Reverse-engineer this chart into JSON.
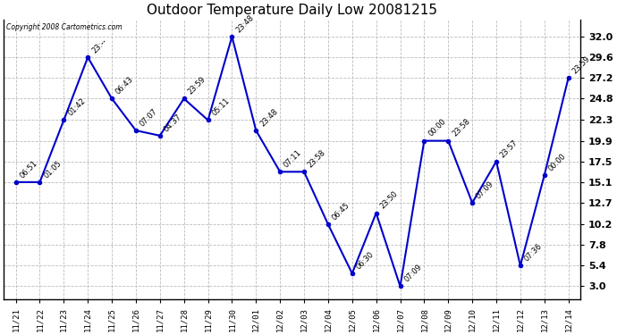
{
  "title": "Outdoor Temperature Daily Low 20081215",
  "copyright_text": "Copyright 2008 Cartometrics.com",
  "dates": [
    "11/21",
    "11/22",
    "11/23",
    "11/24",
    "11/25",
    "11/26",
    "11/27",
    "11/28",
    "11/29",
    "11/30",
    "12/01",
    "12/02",
    "12/03",
    "12/04",
    "12/05",
    "12/06",
    "12/07",
    "12/08",
    "12/09",
    "12/10",
    "12/11",
    "12/12",
    "12/13",
    "12/14"
  ],
  "values": [
    15.1,
    15.1,
    22.3,
    29.6,
    24.8,
    21.1,
    20.5,
    24.8,
    22.3,
    32.0,
    21.1,
    16.3,
    16.3,
    10.2,
    4.5,
    11.5,
    3.0,
    19.9,
    19.9,
    12.7,
    17.5,
    5.4,
    15.9,
    27.2
  ],
  "times": [
    "06:51",
    "01:05",
    "01:42",
    "23:--",
    "06:43",
    "07:07",
    "04:37",
    "23:59",
    "05:11",
    "23:48",
    "23:48",
    "07:11",
    "23:58",
    "06:45",
    "06:30",
    "23:50",
    "07:09",
    "00:00",
    "23:58",
    "07:09",
    "23:57",
    "07:36",
    "00:00",
    "23:59"
  ],
  "line_color": "#0000cc",
  "marker_color": "#0000cc",
  "background_color": "#ffffff",
  "grid_color": "#bbbbbb",
  "yticks": [
    3.0,
    5.4,
    7.8,
    10.2,
    12.7,
    15.1,
    17.5,
    19.9,
    22.3,
    24.8,
    27.2,
    29.6,
    32.0
  ],
  "ylim": [
    1.5,
    34.0
  ],
  "title_fontsize": 11,
  "annotation_fontsize": 6.0,
  "xlabel_fontsize": 6.5,
  "ylabel_fontsize": 8.0,
  "copyright_fontsize": 5.5,
  "fig_width": 6.9,
  "fig_height": 3.75,
  "dpi": 100
}
